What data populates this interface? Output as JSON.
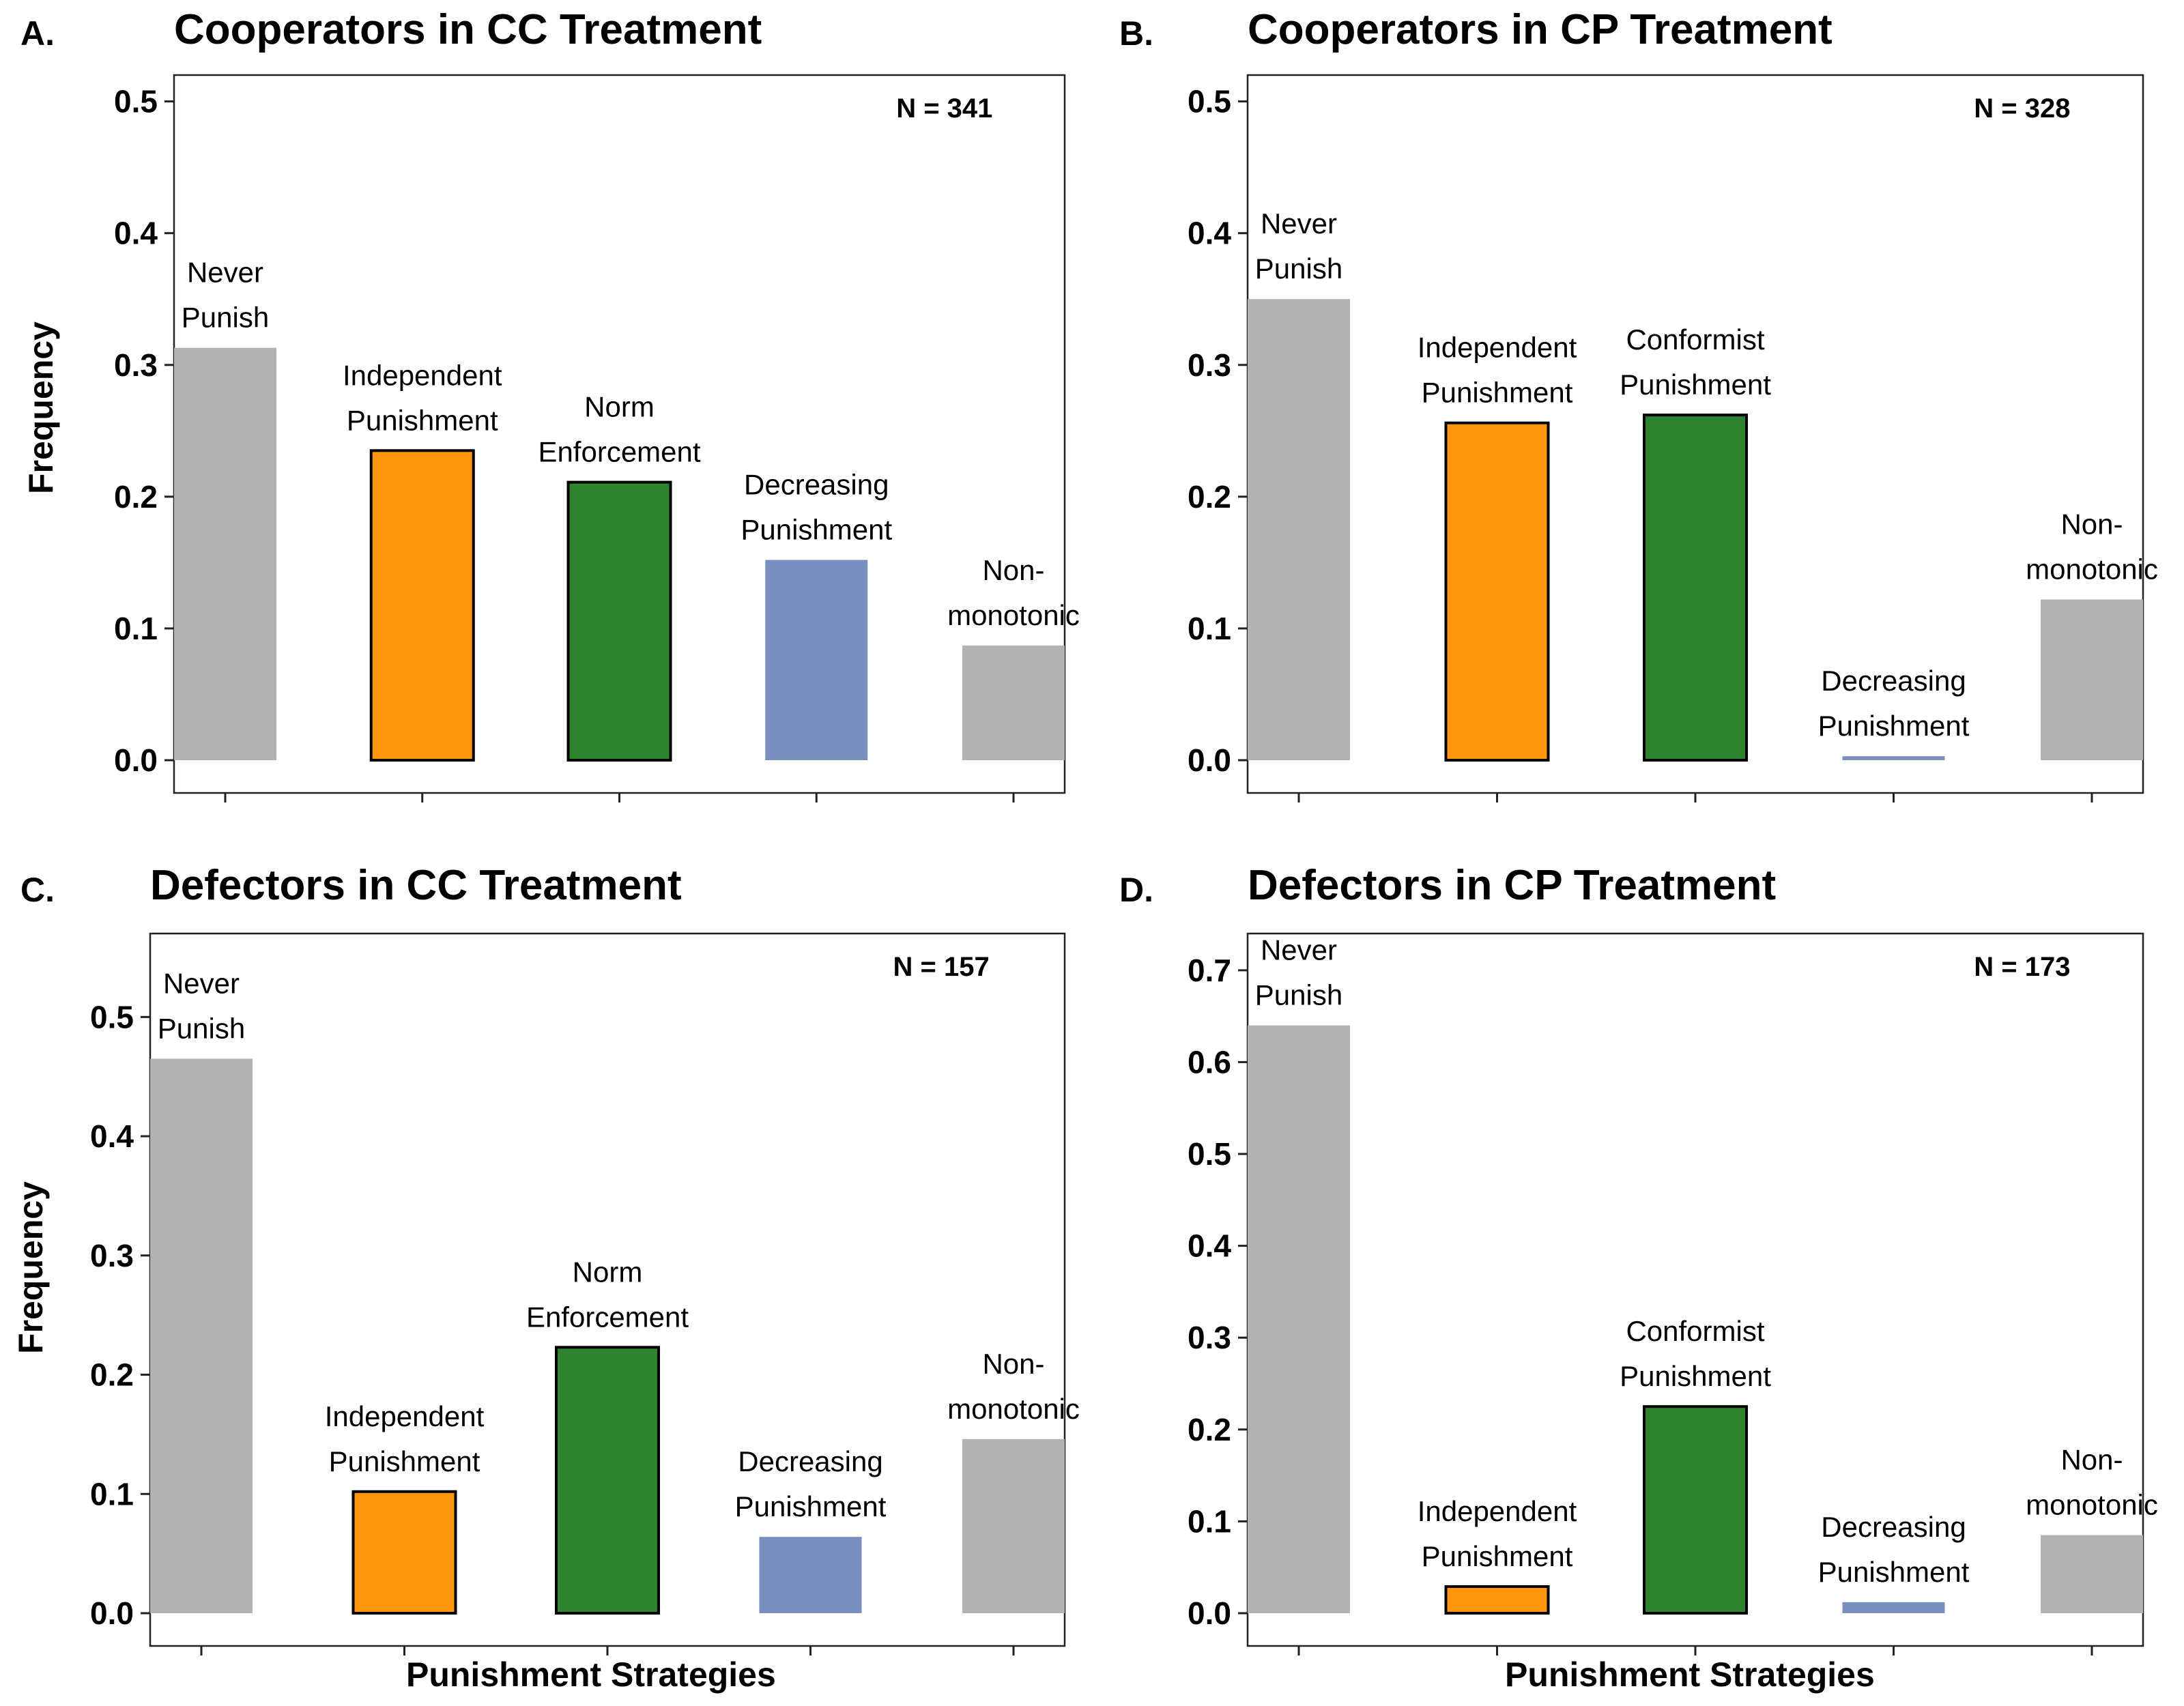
{
  "xlabel": "Punishment Strategies",
  "ylabel": "Frequency",
  "colors": {
    "never": "#b2b2b2",
    "independent": "#ff960f",
    "norm": "#2e832e",
    "decreasing": "#7990bf",
    "nonmono": "#b2b2b2"
  },
  "chart_data": [
    {
      "type": "bar",
      "panel": "A.",
      "title": "Cooperators in CC Treatment",
      "n_label": "N = 341",
      "ylim": [
        0,
        0.52
      ],
      "yticks": [
        "0.0",
        "0.1",
        "0.2",
        "0.3",
        "0.4",
        "0.5"
      ],
      "categories": [
        [
          "Never",
          "Punish"
        ],
        [
          "Independent",
          "Punishment"
        ],
        [
          "Norm",
          "Enforcement"
        ],
        [
          "Decreasing",
          "Punishment"
        ],
        [
          "Non-",
          "monotonic"
        ]
      ],
      "values": [
        0.313,
        0.235,
        0.211,
        0.152,
        0.087
      ],
      "color_keys": [
        "never",
        "independent",
        "norm",
        "decreasing",
        "nonmono"
      ],
      "outlined": [
        false,
        true,
        true,
        false,
        false
      ],
      "xlabel": "",
      "ylabel": "Frequency"
    },
    {
      "type": "bar",
      "panel": "B.",
      "title": "Cooperators in CP Treatment",
      "n_label": "N = 328",
      "ylim": [
        0,
        0.52
      ],
      "yticks": [
        "0.0",
        "0.1",
        "0.2",
        "0.3",
        "0.4",
        "0.5"
      ],
      "categories": [
        [
          "Never",
          "Punish"
        ],
        [
          "Independent",
          "Punishment"
        ],
        [
          "Conformist",
          "Punishment"
        ],
        [
          "Decreasing",
          "Punishment"
        ],
        [
          "Non-",
          "monotonic"
        ]
      ],
      "values": [
        0.35,
        0.256,
        0.262,
        0.003,
        0.122
      ],
      "color_keys": [
        "never",
        "independent",
        "norm",
        "decreasing",
        "nonmono"
      ],
      "outlined": [
        false,
        true,
        true,
        false,
        false
      ],
      "xlabel": "",
      "ylabel": ""
    },
    {
      "type": "bar",
      "panel": "C.",
      "title": "Defectors in CC Treatment",
      "n_label": "N = 157",
      "ylim": [
        0,
        0.57
      ],
      "yticks": [
        "0.0",
        "0.1",
        "0.2",
        "0.3",
        "0.4",
        "0.5"
      ],
      "categories": [
        [
          "Never",
          "Punish"
        ],
        [
          "Independent",
          "Punishment"
        ],
        [
          "Norm",
          "Enforcement"
        ],
        [
          "Decreasing",
          "Punishment"
        ],
        [
          "Non-",
          "monotonic"
        ]
      ],
      "values": [
        0.465,
        0.102,
        0.223,
        0.064,
        0.146
      ],
      "color_keys": [
        "never",
        "independent",
        "norm",
        "decreasing",
        "nonmono"
      ],
      "outlined": [
        false,
        true,
        true,
        false,
        false
      ],
      "xlabel": "Punishment Strategies",
      "ylabel": "Frequency"
    },
    {
      "type": "bar",
      "panel": "D.",
      "title": "Defectors in CP Treatment",
      "n_label": "N = 173",
      "ylim": [
        0,
        0.74
      ],
      "yticks": [
        "0.0",
        "0.1",
        "0.2",
        "0.3",
        "0.4",
        "0.5",
        "0.6",
        "0.7"
      ],
      "categories": [
        [
          "Never",
          "Punish"
        ],
        [
          "Independent",
          "Punishment"
        ],
        [
          "Conformist",
          "Punishment"
        ],
        [
          "Decreasing",
          "Punishment"
        ],
        [
          "Non-",
          "monotonic"
        ]
      ],
      "values": [
        0.64,
        0.029,
        0.225,
        0.012,
        0.085
      ],
      "color_keys": [
        "never",
        "independent",
        "norm",
        "decreasing",
        "nonmono"
      ],
      "outlined": [
        false,
        true,
        true,
        false,
        false
      ],
      "xlabel": "Punishment Strategies",
      "ylabel": ""
    }
  ]
}
